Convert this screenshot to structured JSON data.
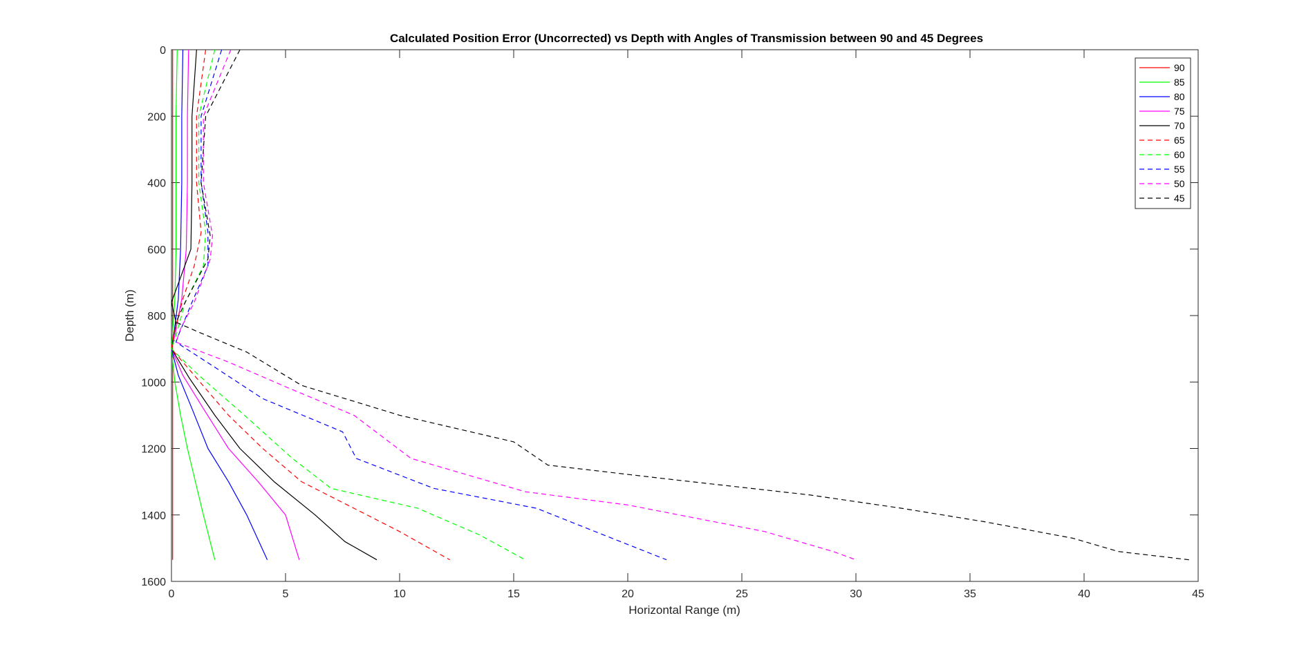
{
  "chart_data": {
    "type": "line",
    "title": "Calculated Position Error (Uncorrected) vs Depth with Angles of Transmission between 90 and 45 Degrees",
    "xlabel": "Horizontal Range (m)",
    "ylabel": "Depth (m)",
    "xlim": [
      0,
      45
    ],
    "ylim": [
      0,
      1600
    ],
    "y_reversed": true,
    "x_ticks": [
      "0",
      "5",
      "10",
      "15",
      "20",
      "25",
      "30",
      "35",
      "40",
      "45"
    ],
    "y_ticks": [
      "0",
      "200",
      "400",
      "600",
      "800",
      "1000",
      "1200",
      "1400",
      "1600"
    ],
    "grid": false,
    "legend_position": "top-right",
    "series": [
      {
        "name": "90",
        "color": "#ff0000",
        "dash": "solid",
        "points": [
          [
            0.05,
            0
          ],
          [
            0.05,
            200
          ],
          [
            0.05,
            400
          ],
          [
            0.05,
            600
          ],
          [
            0.05,
            800
          ],
          [
            0.05,
            900
          ],
          [
            0.05,
            1000
          ],
          [
            0.05,
            1200
          ],
          [
            0.05,
            1400
          ],
          [
            0.05,
            1535
          ]
        ]
      },
      {
        "name": "85",
        "color": "#00ff00",
        "dash": "solid",
        "points": [
          [
            0.25,
            0
          ],
          [
            0.2,
            200
          ],
          [
            0.2,
            400
          ],
          [
            0.2,
            600
          ],
          [
            0.15,
            750
          ],
          [
            0.05,
            850
          ],
          [
            0.0,
            900
          ],
          [
            0.15,
            1000
          ],
          [
            0.4,
            1100
          ],
          [
            0.7,
            1200
          ],
          [
            1.05,
            1300
          ],
          [
            1.4,
            1400
          ],
          [
            1.9,
            1535
          ]
        ]
      },
      {
        "name": "80",
        "color": "#0000ff",
        "dash": "solid",
        "points": [
          [
            0.5,
            0
          ],
          [
            0.45,
            200
          ],
          [
            0.45,
            400
          ],
          [
            0.4,
            600
          ],
          [
            0.3,
            750
          ],
          [
            0.1,
            860
          ],
          [
            0.0,
            900
          ],
          [
            0.3,
            980
          ],
          [
            0.9,
            1080
          ],
          [
            1.6,
            1200
          ],
          [
            2.5,
            1300
          ],
          [
            3.3,
            1400
          ],
          [
            4.2,
            1535
          ]
        ]
      },
      {
        "name": "75",
        "color": "#ff00ff",
        "dash": "solid",
        "points": [
          [
            0.75,
            0
          ],
          [
            0.7,
            200
          ],
          [
            0.7,
            400
          ],
          [
            0.65,
            600
          ],
          [
            0.45,
            750
          ],
          [
            0.15,
            860
          ],
          [
            0.0,
            900
          ],
          [
            0.5,
            980
          ],
          [
            1.4,
            1080
          ],
          [
            2.5,
            1200
          ],
          [
            3.8,
            1300
          ],
          [
            5.0,
            1400
          ],
          [
            5.6,
            1535
          ]
        ]
      },
      {
        "name": "70",
        "color": "#000000",
        "dash": "solid",
        "points": [
          [
            1.1,
            0
          ],
          [
            0.9,
            200
          ],
          [
            0.9,
            400
          ],
          [
            0.85,
            600
          ],
          [
            0.0,
            760
          ],
          [
            0.2,
            820
          ],
          [
            0.0,
            900
          ],
          [
            0.8,
            990
          ],
          [
            1.9,
            1100
          ],
          [
            3.0,
            1200
          ],
          [
            4.5,
            1300
          ],
          [
            6.3,
            1400
          ],
          [
            7.6,
            1480
          ],
          [
            9.0,
            1535
          ]
        ]
      },
      {
        "name": "65",
        "color": "#ff0000",
        "dash": "dashed",
        "points": [
          [
            1.5,
            0
          ],
          [
            1.1,
            200
          ],
          [
            1.1,
            400
          ],
          [
            1.3,
            550
          ],
          [
            1.0,
            650
          ],
          [
            0.5,
            750
          ],
          [
            0.1,
            860
          ],
          [
            0.0,
            900
          ],
          [
            1.0,
            980
          ],
          [
            2.5,
            1100
          ],
          [
            4.0,
            1200
          ],
          [
            5.7,
            1300
          ],
          [
            8.0,
            1380
          ],
          [
            10.0,
            1450
          ],
          [
            12.2,
            1535
          ]
        ]
      },
      {
        "name": "60",
        "color": "#00ff00",
        "dash": "dashed",
        "points": [
          [
            1.9,
            0
          ],
          [
            1.2,
            200
          ],
          [
            1.2,
            400
          ],
          [
            1.5,
            550
          ],
          [
            1.4,
            650
          ],
          [
            0.6,
            760
          ],
          [
            0.2,
            860
          ],
          [
            0.0,
            900
          ],
          [
            1.2,
            980
          ],
          [
            3.2,
            1100
          ],
          [
            5.3,
            1230
          ],
          [
            7.0,
            1320
          ],
          [
            10.8,
            1380
          ],
          [
            13.5,
            1460
          ],
          [
            15.5,
            1535
          ]
        ]
      },
      {
        "name": "55",
        "color": "#0000ff",
        "dash": "dashed",
        "points": [
          [
            2.2,
            0
          ],
          [
            1.3,
            200
          ],
          [
            1.3,
            400
          ],
          [
            1.6,
            550
          ],
          [
            1.6,
            650
          ],
          [
            0.9,
            760
          ],
          [
            0.3,
            860
          ],
          [
            0.2,
            880
          ],
          [
            2.0,
            960
          ],
          [
            4.0,
            1050
          ],
          [
            7.5,
            1150
          ],
          [
            8.1,
            1230
          ],
          [
            11.5,
            1320
          ],
          [
            16.0,
            1380
          ],
          [
            19.3,
            1470
          ],
          [
            21.7,
            1535
          ]
        ]
      },
      {
        "name": "50",
        "color": "#ff00ff",
        "dash": "dashed",
        "points": [
          [
            2.6,
            0
          ],
          [
            1.4,
            200
          ],
          [
            1.4,
            400
          ],
          [
            1.8,
            560
          ],
          [
            1.7,
            630
          ],
          [
            1.0,
            760
          ],
          [
            0.4,
            840
          ],
          [
            0.2,
            880
          ],
          [
            2.5,
            940
          ],
          [
            5.2,
            1020
          ],
          [
            8.0,
            1100
          ],
          [
            10.5,
            1230
          ],
          [
            15.5,
            1330
          ],
          [
            20.0,
            1370
          ],
          [
            26.0,
            1450
          ],
          [
            29.0,
            1510
          ],
          [
            30.0,
            1535
          ]
        ]
      },
      {
        "name": "45",
        "color": "#000000",
        "dash": "dashed",
        "points": [
          [
            3.0,
            0
          ],
          [
            1.5,
            200
          ],
          [
            1.3,
            400
          ],
          [
            1.7,
            560
          ],
          [
            1.6,
            630
          ],
          [
            0.6,
            760
          ],
          [
            0.2,
            820
          ],
          [
            1.2,
            850
          ],
          [
            3.3,
            910
          ],
          [
            5.7,
            1010
          ],
          [
            10.0,
            1100
          ],
          [
            15.0,
            1180
          ],
          [
            16.5,
            1250
          ],
          [
            21.5,
            1290
          ],
          [
            28.0,
            1340
          ],
          [
            32.0,
            1380
          ],
          [
            35.6,
            1420
          ],
          [
            39.5,
            1470
          ],
          [
            41.5,
            1510
          ],
          [
            44.6,
            1535
          ]
        ]
      }
    ]
  }
}
